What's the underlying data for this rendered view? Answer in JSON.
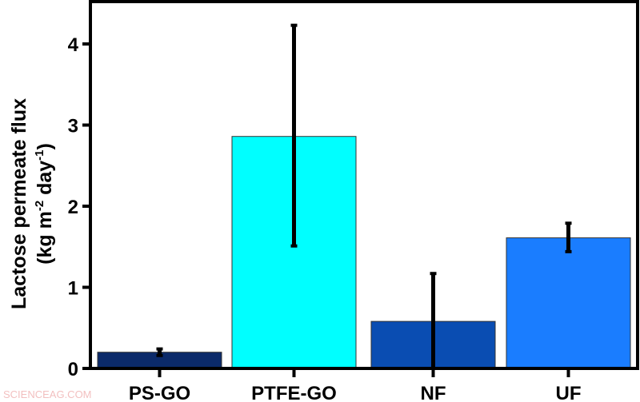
{
  "chart_data": {
    "type": "bar",
    "categories": [
      "PS-GO",
      "PTFE-GO",
      "NF",
      "UF"
    ],
    "values": [
      0.2,
      2.86,
      0.58,
      1.61
    ],
    "error_low": [
      0.16,
      1.51,
      0.0,
      1.44
    ],
    "error_high": [
      0.24,
      4.23,
      1.17,
      1.79
    ],
    "colors": [
      "#0b2a6a",
      "#00ffff",
      "#0a4db2",
      "#1a7dff"
    ],
    "ylabel_line1": "Lactose permeate flux",
    "ylabel_line2_pre": "(kg m",
    "ylabel_sup1": "-2",
    "ylabel_mid": " day",
    "ylabel_sup2": "-1",
    "ylabel_post": ")",
    "yticks": [
      0,
      1,
      2,
      3,
      4
    ],
    "ylim": [
      0,
      4.5
    ],
    "grid": false
  },
  "watermark": "SCIENCEAG.COM"
}
